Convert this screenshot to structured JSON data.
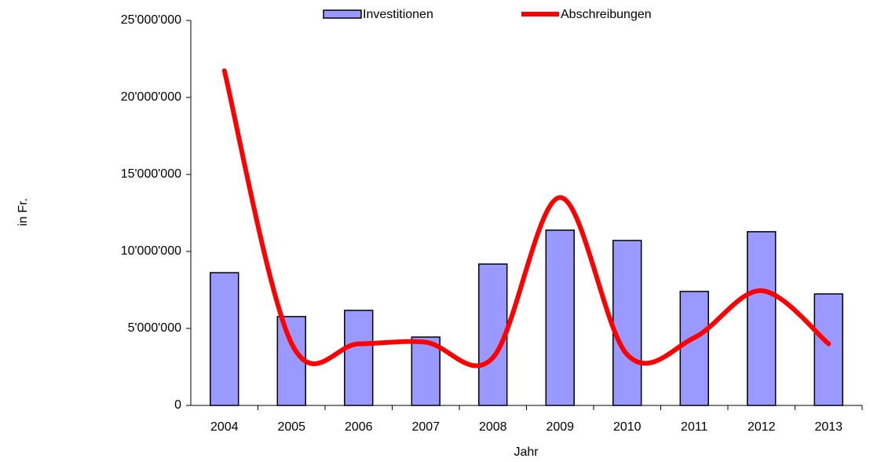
{
  "chart_data": {
    "type": "bar",
    "x_label": "Jahr",
    "y_label": "in Fr.",
    "categories": [
      "2004",
      "2005",
      "2006",
      "2007",
      "2008",
      "2009",
      "2010",
      "2011",
      "2012",
      "2013"
    ],
    "series": [
      {
        "name": "Investitionen",
        "type": "bar",
        "color": "#9999ff",
        "values": [
          8620000,
          5770000,
          6170000,
          4440000,
          9180000,
          11380000,
          10710000,
          7400000,
          11280000,
          7240000
        ]
      },
      {
        "name": "Abschreibungen",
        "type": "line",
        "color": "#ff0000",
        "values": [
          21730000,
          4030000,
          4000000,
          4100000,
          3100000,
          13500000,
          3300000,
          4400000,
          7450000,
          4000000
        ]
      }
    ],
    "ylim": [
      0,
      25000000
    ],
    "yticks": [
      0,
      {
        "value": 5000000,
        "label": "5'000'000"
      },
      {
        "value": 10000000,
        "label": "10'000'000"
      },
      {
        "value": 15000000,
        "label": "15'000'000"
      },
      {
        "value": 20000000,
        "label": "20'000'000"
      },
      {
        "value": 25000000,
        "label": "25'000'000"
      }
    ],
    "grid": false,
    "legend": "top"
  }
}
